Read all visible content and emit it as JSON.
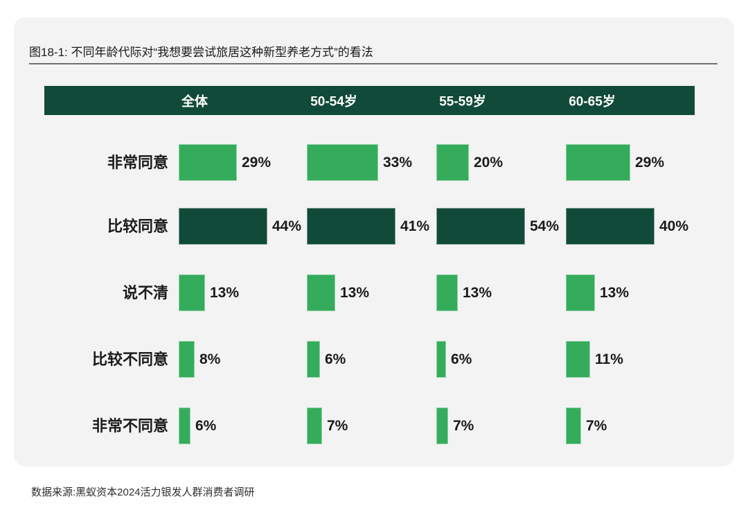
{
  "page": {
    "source_note": "数据来源:黑蚁资本2024活力银发人群消费者调研"
  },
  "colors": {
    "dark_green": "#114A38",
    "light_green": "#35AC5C",
    "card_background": "#F3F3F3",
    "text": "#1A1A1A",
    "divider": "#6F6F6F",
    "header_text": "#FFFFFF"
  },
  "chart_data": {
    "type": "bar",
    "orientation": "horizontal",
    "title": "图18-1: 不同年龄代际对“我想要尝试旅居这种新型养老方式”的看法",
    "columns": [
      "全体",
      "50-54岁",
      "55-59岁",
      "60-65岁"
    ],
    "categories": [
      "非常同意",
      "比较同意",
      "说不清",
      "比较不同意",
      "非常不同意"
    ],
    "series": [
      {
        "name": "全体",
        "values": [
          29,
          44,
          13,
          8,
          6
        ]
      },
      {
        "name": "50-54岁",
        "values": [
          33,
          41,
          13,
          6,
          7
        ]
      },
      {
        "name": "55-59岁",
        "values": [
          20,
          54,
          13,
          6,
          7
        ]
      },
      {
        "name": "60-65岁",
        "values": [
          29,
          40,
          13,
          11,
          7
        ]
      }
    ],
    "unit": "%",
    "value_labels_shown": true,
    "highlight_category": "比较同意",
    "legend": "none",
    "grid": "off",
    "source": "数据来源:黑蚁资本2024活力银发人群消费者调研"
  }
}
